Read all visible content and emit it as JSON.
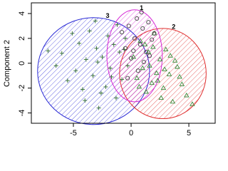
{
  "chart_data": {
    "type": "cluster",
    "ylabel": "Component 2",
    "xlim": [
      -8.64,
      7.28
    ],
    "ylim": [
      -4.83,
      4.86
    ],
    "xticks": [
      -5,
      0,
      5
    ],
    "yticks": [
      -4,
      -2,
      0,
      2,
      4
    ],
    "series": [
      {
        "name": "3",
        "color": "#2b2bd6",
        "point_color": "#2e6b2e",
        "marker": "plus",
        "ellipse": {
          "cx": -3.25,
          "cy": -0.63,
          "rx": 4.85,
          "ry": 4.3
        },
        "x": [
          -7.2,
          -6.5,
          -6.0,
          -5.5,
          -5.1,
          -4.8,
          -4.5,
          -4.2,
          -3.9,
          -3.6,
          -3.3,
          -3.0,
          -2.8,
          -2.5,
          -2.2,
          -2.0,
          -1.8,
          -1.5,
          -1.3,
          -1.0,
          -0.8,
          -0.5,
          -0.3,
          -2.6,
          -3.1,
          -4.0,
          -1.2,
          -0.6,
          -2.9,
          -1.7
        ],
        "y": [
          1.0,
          -0.2,
          0.8,
          -1.4,
          2.4,
          -0.6,
          1.6,
          -2.1,
          0.3,
          2.6,
          -1.0,
          1.2,
          -3.6,
          0.5,
          -1.9,
          2.2,
          -0.4,
          1.5,
          -2.8,
          0.9,
          -1.3,
          2.0,
          -0.2,
          -2.4,
          3.4,
          -3.0,
          3.1,
          1.1,
          0.1,
          -1.1
        ]
      },
      {
        "name": "2",
        "color": "#e03030",
        "point_color": "#3a8a3a",
        "marker": "triangle",
        "ellipse": {
          "cx": 2.75,
          "cy": -0.83,
          "rx": 3.75,
          "ry": 3.63
        },
        "x": [
          0.2,
          0.5,
          0.8,
          1.0,
          1.3,
          1.5,
          1.8,
          2.0,
          2.2,
          2.5,
          2.8,
          3.0,
          3.3,
          3.6,
          4.0,
          4.4,
          4.8,
          5.3,
          1.2,
          2.6,
          3.4,
          0.7,
          1.9,
          4.2,
          2.9,
          1.6,
          3.8,
          2.3
        ],
        "y": [
          0.5,
          -1.2,
          1.8,
          -0.4,
          -2.3,
          0.9,
          -1.6,
          2.4,
          -0.8,
          0.3,
          -2.0,
          1.1,
          -0.9,
          -3.1,
          -0.3,
          -1.7,
          -2.6,
          -3.3,
          1.5,
          -2.8,
          0.6,
          -1.9,
          1.3,
          -1.1,
          -0.5,
          -0.2,
          0.2,
          -1.4
        ]
      },
      {
        "name": "1",
        "color": "#d62bd6",
        "point_color": "#444444",
        "marker": "circle",
        "ellipse": {
          "cx": 0.3,
          "cy": 0.6,
          "rx": 2.4,
          "ry": 3.7
        },
        "x": [
          -0.8,
          -0.5,
          -0.2,
          0.0,
          0.3,
          0.5,
          0.8,
          1.0,
          1.3,
          1.5,
          1.8,
          2.0,
          0.6,
          1.1,
          -0.3,
          0.9,
          1.6,
          0.2
        ],
        "y": [
          2.5,
          1.2,
          3.0,
          0.4,
          2.0,
          3.6,
          1.5,
          2.8,
          0.9,
          3.3,
          1.9,
          2.4,
          -0.6,
          0.1,
          -1.2,
          4.1,
          0.6,
          1.0
        ]
      }
    ]
  }
}
